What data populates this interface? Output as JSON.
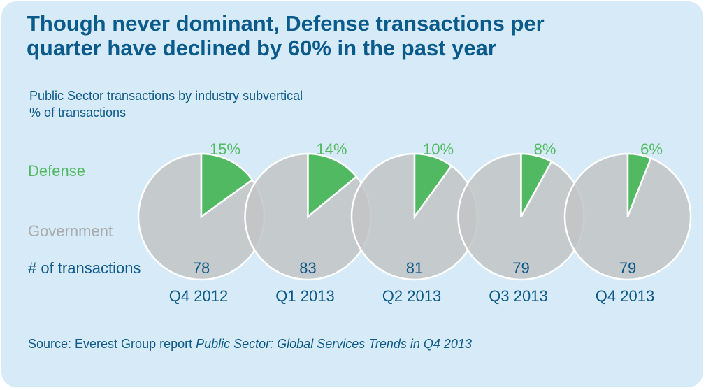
{
  "chart_data": {
    "type": "pie",
    "title": [
      "Though never dominant, Defense transactions per",
      "quarter have declined by 60% in the past year"
    ],
    "subtitle": [
      "Public Sector transactions by industry subvertical",
      "% of transactions"
    ],
    "categories": [
      "Q4 2012",
      "Q1 2013",
      "Q2 2013",
      "Q3 2013",
      "Q4 2013"
    ],
    "series": [
      {
        "name": "Defense",
        "color": "#52b963",
        "values": [
          15,
          14,
          10,
          8,
          6
        ],
        "value_labels": [
          "15%",
          "14%",
          "10%",
          "8%",
          "6%"
        ]
      },
      {
        "name": "Government",
        "color": "#c2c4c6",
        "values": [
          85,
          86,
          90,
          92,
          94
        ]
      }
    ],
    "transactions": {
      "label": "# of transactions",
      "values": [
        78,
        83,
        81,
        79,
        79
      ]
    },
    "source": {
      "text": "Source: Everest Group report",
      "report": "Public Sector: Global Services Trends in Q4 2013"
    }
  }
}
